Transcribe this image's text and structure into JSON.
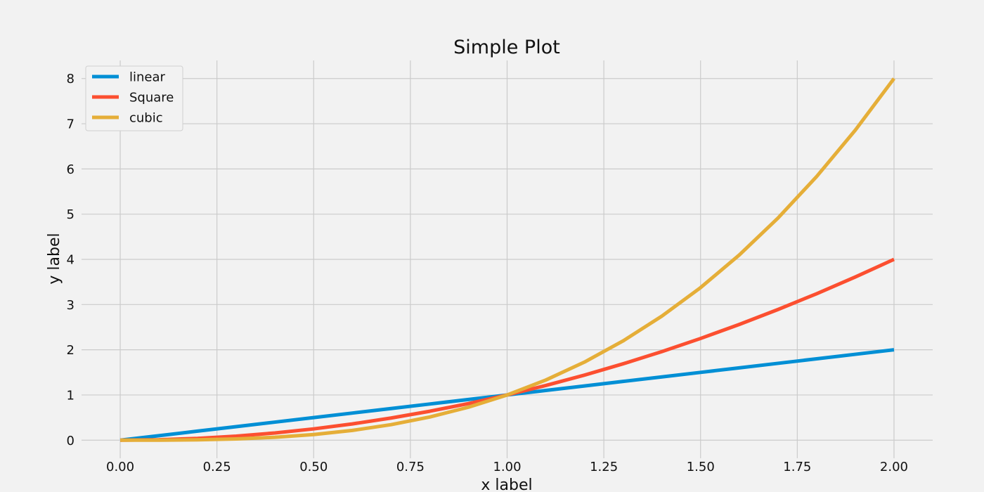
{
  "chart_data": {
    "type": "line",
    "title": "Simple Plot",
    "xlabel": "x label",
    "ylabel": "y label",
    "xlim": [
      -0.1,
      2.1
    ],
    "ylim": [
      -0.4,
      8.4
    ],
    "xticks": [
      0.0,
      0.25,
      0.5,
      0.75,
      1.0,
      1.25,
      1.5,
      1.75,
      2.0
    ],
    "xtick_labels": [
      "0.00",
      "0.25",
      "0.50",
      "0.75",
      "1.00",
      "1.25",
      "1.50",
      "1.75",
      "2.00"
    ],
    "yticks": [
      0,
      1,
      2,
      3,
      4,
      5,
      6,
      7,
      8
    ],
    "ytick_labels": [
      "0",
      "1",
      "2",
      "3",
      "4",
      "5",
      "6",
      "7",
      "8"
    ],
    "grid": true,
    "legend_position": "top-left",
    "x": [
      0.0,
      0.1,
      0.2,
      0.3,
      0.4,
      0.5,
      0.6,
      0.7,
      0.8,
      0.9,
      1.0,
      1.1,
      1.2,
      1.3,
      1.4,
      1.5,
      1.6,
      1.7,
      1.8,
      1.9,
      2.0
    ],
    "series": [
      {
        "name": "linear",
        "color": "#008fd5",
        "values": [
          0.0,
          0.1,
          0.2,
          0.3,
          0.4,
          0.5,
          0.6,
          0.7,
          0.8,
          0.9,
          1.0,
          1.1,
          1.2,
          1.3,
          1.4,
          1.5,
          1.6,
          1.7,
          1.8,
          1.9,
          2.0
        ]
      },
      {
        "name": "Square",
        "color": "#fc4f30",
        "values": [
          0.0,
          0.01,
          0.04,
          0.09,
          0.16,
          0.25,
          0.36,
          0.49,
          0.64,
          0.81,
          1.0,
          1.21,
          1.44,
          1.69,
          1.96,
          2.25,
          2.56,
          2.89,
          3.24,
          3.61,
          4.0
        ]
      },
      {
        "name": "cubic",
        "color": "#e5ae38",
        "values": [
          0.0,
          0.001,
          0.008,
          0.027,
          0.064,
          0.125,
          0.216,
          0.343,
          0.512,
          0.729,
          1.0,
          1.331,
          1.728,
          2.197,
          2.744,
          3.375,
          4.096,
          4.913,
          5.832,
          6.859,
          8.0
        ]
      }
    ]
  }
}
